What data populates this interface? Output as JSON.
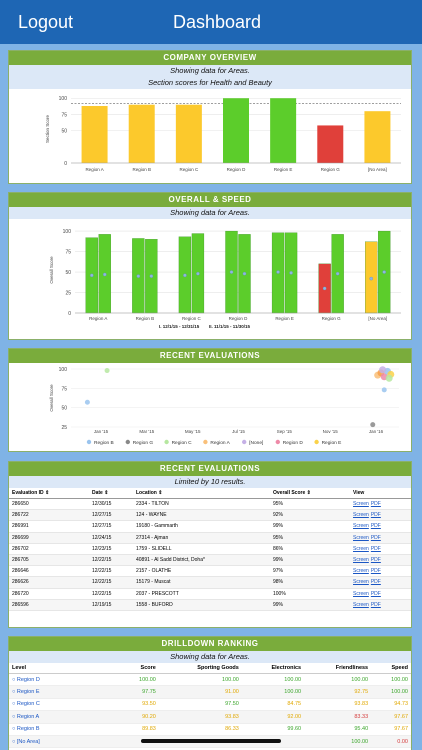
{
  "topbar": {
    "logout": "Logout",
    "title": "Dashboard"
  },
  "overview": {
    "header": "COMPANY OVERVIEW",
    "sub1": "Showing data for Areas.",
    "sub2": "Section scores for Health and Beauty",
    "chart_data": {
      "type": "bar",
      "categories": [
        "Region A",
        "Region B",
        "Region C",
        "Region D",
        "Region E",
        "Region G",
        "[No Area]"
      ],
      "values": [
        88,
        90,
        90,
        100,
        100,
        58,
        80
      ],
      "colors": [
        "#fcc92c",
        "#fcc92c",
        "#fcc92c",
        "#5ccd2b",
        "#5ccd2b",
        "#e0403a",
        "#fcc92c"
      ],
      "ylabel": "Section Score",
      "yticks": [
        0,
        50,
        75,
        100
      ],
      "ylim": [
        0,
        105
      ],
      "reference_line": 92
    }
  },
  "overall": {
    "header": "OVERALL & SPEED",
    "sub1": "Showing data for Areas.",
    "chart_data": {
      "type": "bar",
      "categories": [
        "Region A",
        "Region B",
        "Region C",
        "Region D",
        "Region E",
        "Region G",
        "[No Area]"
      ],
      "ylabel": "Overall Score",
      "yticks": [
        0,
        25,
        50,
        75,
        100
      ],
      "ylim": [
        0,
        105
      ],
      "series": [
        {
          "name": "I. 12/1/15 - 12/31/15",
          "values": [
            92,
            91,
            93,
            100,
            98,
            60,
            87
          ],
          "colors": [
            "#5ccd2b",
            "#5ccd2b",
            "#5ccd2b",
            "#5ccd2b",
            "#5ccd2b",
            "#e0403a",
            "#fcc92c"
          ],
          "markers": [
            46,
            45,
            46,
            50,
            50,
            30,
            42
          ]
        },
        {
          "name": "II. 11/1/15 - 11/30/15",
          "values": [
            96,
            90,
            97,
            96,
            98,
            96,
            100
          ],
          "colors": [
            "#5ccd2b",
            "#5ccd2b",
            "#5ccd2b",
            "#5ccd2b",
            "#5ccd2b",
            "#5ccd2b",
            "#5ccd2b"
          ],
          "markers": [
            47,
            45,
            48,
            48,
            49,
            48,
            50
          ]
        }
      ]
    }
  },
  "recent_chart": {
    "header": "RECENT EVALUATIONS",
    "chart_data": {
      "type": "scatter",
      "ylabel": "Overall Score",
      "yticks": [
        25,
        50,
        75,
        100
      ],
      "ylim": [
        25,
        100
      ],
      "xticks": [
        "Jan '15",
        "Mar '15",
        "May '15",
        "Jul '15",
        "Sep '15",
        "Nov '15",
        "Jan '16"
      ],
      "points": [
        {
          "x": 0.05,
          "y": 57,
          "color": "#9ac4ee",
          "r": 2.5
        },
        {
          "x": 0.11,
          "y": 98,
          "color": "#b6e7a0",
          "r": 2.5
        },
        {
          "x": 0.935,
          "y": 92,
          "color": "#f9c07a",
          "r": 3.5
        },
        {
          "x": 0.945,
          "y": 95,
          "color": "#f7a04a",
          "r": 3.5
        },
        {
          "x": 0.955,
          "y": 90,
          "color": "#ee8aa8",
          "r": 3.5
        },
        {
          "x": 0.965,
          "y": 97,
          "color": "#9ac4ee",
          "r": 3.5
        },
        {
          "x": 0.975,
          "y": 93,
          "color": "#fad24a",
          "r": 3.5
        },
        {
          "x": 0.95,
          "y": 99,
          "color": "#c5b0e6",
          "r": 3.5
        },
        {
          "x": 0.97,
          "y": 88,
          "color": "#b6e7a0",
          "r": 3.5
        },
        {
          "x": 0.955,
          "y": 73,
          "color": "#9ac4ee",
          "r": 2.5
        },
        {
          "x": 0.92,
          "y": 28,
          "color": "#888888",
          "r": 2.5
        }
      ],
      "legend": [
        {
          "name": "Region B",
          "color": "#9ac4ee"
        },
        {
          "name": "Region G",
          "color": "#888888"
        },
        {
          "name": "Region C",
          "color": "#b6e7a0"
        },
        {
          "name": "Region A",
          "color": "#f9c07a"
        },
        {
          "name": "[None]",
          "color": "#c5b0e6"
        },
        {
          "name": "Region D",
          "color": "#ee8aa8"
        },
        {
          "name": "Region E",
          "color": "#fad24a"
        }
      ]
    }
  },
  "eval_table": {
    "header": "RECENT EVALUATIONS",
    "sub1": "Limited by 10 results.",
    "columns": [
      "Evaluation ID",
      "Date",
      "Location",
      "Overall Score",
      "View"
    ],
    "screen_label": "Screen",
    "pdf_label": "PDF",
    "rows": [
      [
        "286650",
        "12/30/15",
        "2334 - TILTON",
        "95%"
      ],
      [
        "286722",
        "12/27/15",
        "124 - WAYNE",
        "92%"
      ],
      [
        "286991",
        "12/27/15",
        "19180 - Gammarth",
        "99%"
      ],
      [
        "286699",
        "12/24/15",
        "27314 - Ajman",
        "95%"
      ],
      [
        "286702",
        "12/23/15",
        "1759 - SLIDELL",
        "86%"
      ],
      [
        "286705",
        "12/22/15",
        "40891 - Al Sadd District, Doha*",
        "99%"
      ],
      [
        "286646",
        "12/22/15",
        "2157 - OLATHE",
        "97%"
      ],
      [
        "286626",
        "12/22/15",
        "15179 - Muscat",
        "98%"
      ],
      [
        "286720",
        "12/22/15",
        "2037 - PRESCOTT",
        "100%"
      ],
      [
        "286596",
        "12/19/15",
        "1558 - BUFORD",
        "99%"
      ]
    ]
  },
  "drilldown": {
    "header": "DRILLDOWN RANKING",
    "sub1": "Showing data for Areas.",
    "columns": [
      "Level",
      "Score",
      "Sporting Goods",
      "Electronics",
      "Friendliness",
      "Speed"
    ],
    "rows": [
      {
        "level": "Region D",
        "values": [
          "100.00",
          "100.00",
          "100.00",
          "100.00",
          "100.00"
        ],
        "cls": [
          "g",
          "g",
          "g",
          "g",
          "g"
        ]
      },
      {
        "level": "Region E",
        "values": [
          "97.75",
          "91.00",
          "100.00",
          "92.75",
          "100.00"
        ],
        "cls": [
          "g",
          "y",
          "g",
          "y",
          "g"
        ]
      },
      {
        "level": "Region C",
        "values": [
          "93.50",
          "97.50",
          "84.75",
          "93.83",
          "94.73"
        ],
        "cls": [
          "y",
          "g",
          "y",
          "y",
          "y"
        ]
      },
      {
        "level": "Region A",
        "values": [
          "90.20",
          "93.83",
          "92.00",
          "83.33",
          "97.67"
        ],
        "cls": [
          "y",
          "y",
          "y",
          "r",
          "y"
        ]
      },
      {
        "level": "Region B",
        "values": [
          "89.83",
          "86.33",
          "99.60",
          "95.40",
          "97.67"
        ],
        "cls": [
          "y",
          "y",
          "g",
          "g",
          "y"
        ]
      },
      {
        "level": "[No Area]",
        "values": [
          "",
          "97.50",
          "",
          "100.00",
          "0.00"
        ],
        "cls": [
          "y",
          "g",
          "y",
          "g",
          "r"
        ]
      }
    ]
  }
}
